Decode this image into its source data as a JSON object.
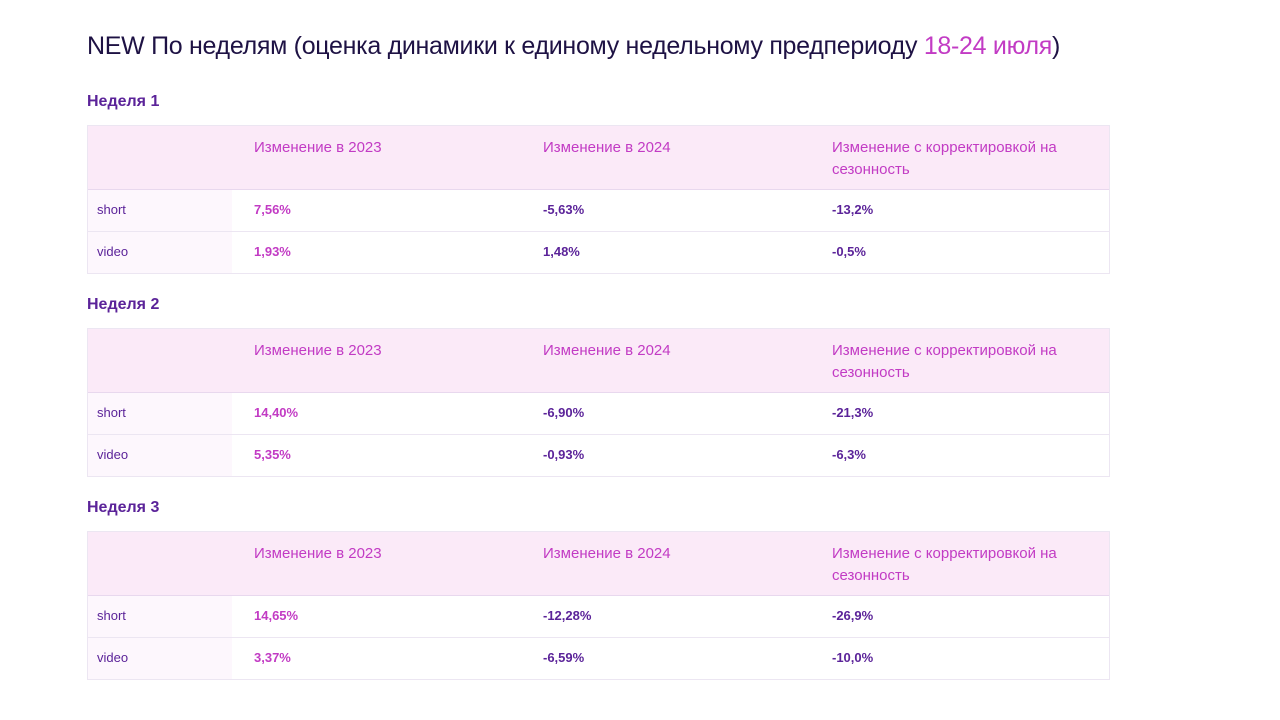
{
  "title": {
    "main": "NEW По неделям (оценка динамики к единому недельному предпериоду ",
    "accent": "18-24 июля",
    "close": ")"
  },
  "columns": [
    "Изменение в 2023",
    "Изменение в 2024",
    "Изменение с корректировкой на сезонность"
  ],
  "weeks": [
    {
      "heading": "Неделя 1",
      "rows": [
        {
          "label": "short",
          "v2023": "7,56%",
          "v2024": "-5,63%",
          "adj": "-13,2%"
        },
        {
          "label": "video",
          "v2023": "1,93%",
          "v2024": "1,48%",
          "adj": "-0,5%"
        }
      ]
    },
    {
      "heading": "Неделя 2",
      "rows": [
        {
          "label": "short",
          "v2023": "14,40%",
          "v2024": "-6,90%",
          "adj": "-21,3%"
        },
        {
          "label": "video",
          "v2023": "5,35%",
          "v2024": "-0,93%",
          "adj": "-6,3%"
        }
      ]
    },
    {
      "heading": "Неделя 3",
      "rows": [
        {
          "label": "short",
          "v2023": "14,65%",
          "v2024": "-12,28%",
          "adj": "-26,9%"
        },
        {
          "label": "video",
          "v2023": "3,37%",
          "v2024": "-6,59%",
          "adj": "-10,0%"
        }
      ]
    }
  ],
  "colors": {
    "title": "#1e1244",
    "accent": "#c23bc4",
    "heading": "#5b2399",
    "header_bg": "#fbeaf8"
  }
}
